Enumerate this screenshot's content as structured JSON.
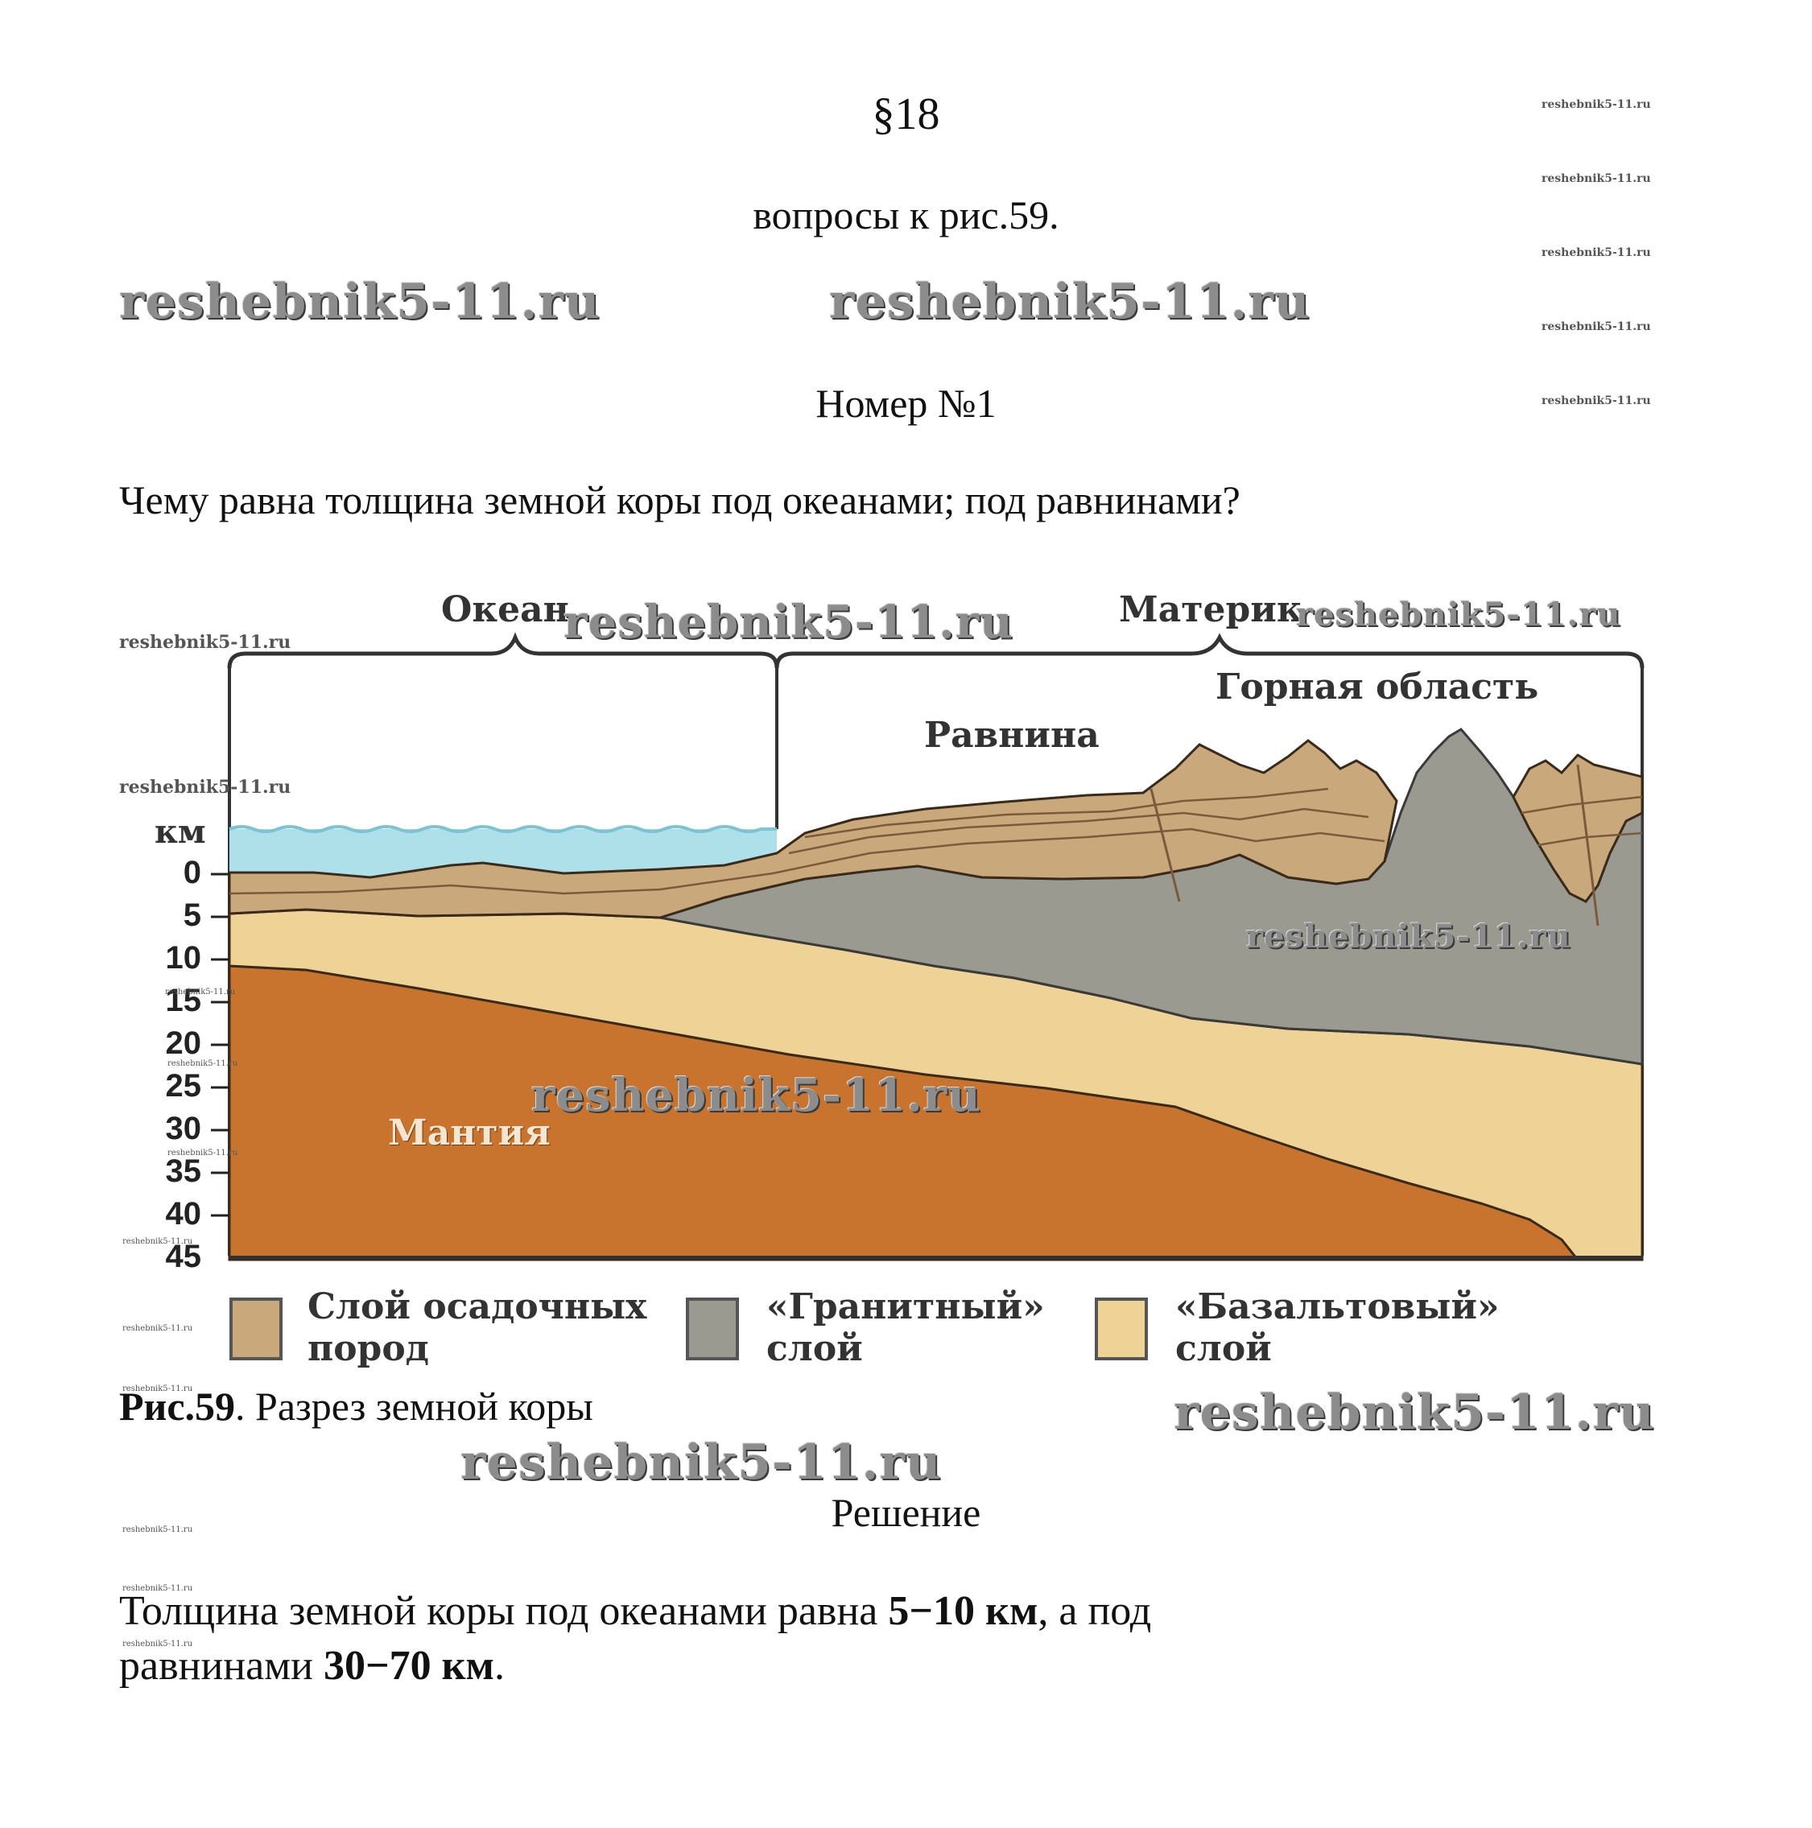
{
  "header": {
    "section": "§18",
    "subtitle": "вопросы к рис.59.",
    "number": "Номер №1"
  },
  "question": "Чему равна толщина земной коры под океанами; под равнинами?",
  "figure": {
    "labels": {
      "ocean": "Океан",
      "continent": "Материк",
      "mountains": "Горная область",
      "plain": "Равнина",
      "mantle": "Мантия",
      "km": "км"
    },
    "depth_ticks": [
      "0",
      "5",
      "10",
      "15",
      "20",
      "25",
      "30",
      "35",
      "40",
      "45"
    ],
    "legend": [
      {
        "label": "Слой осадочных\nпород",
        "color": "#c9a97c"
      },
      {
        "label": "«Гранитный»\nслой",
        "color": "#9a9a90"
      },
      {
        "label": "«Базальтовый»\nслой",
        "color": "#efd296"
      }
    ],
    "caption_bold": "Рис.59",
    "caption_text": ". Разрез земной коры",
    "colors": {
      "water": "#aee0ea",
      "sediment": "#c9a97c",
      "granite": "#9a9a90",
      "basalt": "#efd296",
      "mantle": "#c8742e"
    }
  },
  "solution_title": "Решение",
  "answer": {
    "part1": "Толщина земной коры под океанами равна ",
    "bold1": "5−10 км",
    "part2": ", а под",
    "part3": "равнинами ",
    "bold2": "30−70 км",
    "part4": "."
  },
  "watermark": "reshebnik5-11.ru"
}
